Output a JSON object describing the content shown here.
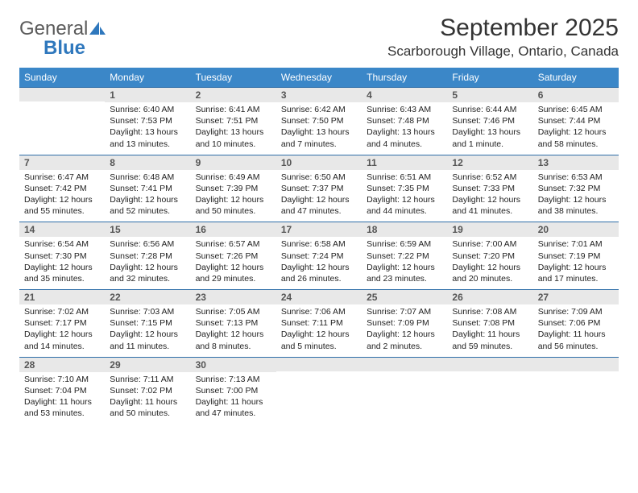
{
  "logo": {
    "general": "General",
    "blue": "Blue"
  },
  "title": "September 2025",
  "location": "Scarborough Village, Ontario, Canada",
  "dayHeaders": [
    "Sunday",
    "Monday",
    "Tuesday",
    "Wednesday",
    "Thursday",
    "Friday",
    "Saturday"
  ],
  "colors": {
    "header_bg": "#3b87c8",
    "header_text": "#ffffff",
    "daynum_bg": "#e8e8e8",
    "border": "#2f6ea8"
  },
  "weeks": [
    [
      {
        "n": "",
        "sr": "",
        "ss": "",
        "dl": ""
      },
      {
        "n": "1",
        "sr": "Sunrise: 6:40 AM",
        "ss": "Sunset: 7:53 PM",
        "dl": "Daylight: 13 hours and 13 minutes."
      },
      {
        "n": "2",
        "sr": "Sunrise: 6:41 AM",
        "ss": "Sunset: 7:51 PM",
        "dl": "Daylight: 13 hours and 10 minutes."
      },
      {
        "n": "3",
        "sr": "Sunrise: 6:42 AM",
        "ss": "Sunset: 7:50 PM",
        "dl": "Daylight: 13 hours and 7 minutes."
      },
      {
        "n": "4",
        "sr": "Sunrise: 6:43 AM",
        "ss": "Sunset: 7:48 PM",
        "dl": "Daylight: 13 hours and 4 minutes."
      },
      {
        "n": "5",
        "sr": "Sunrise: 6:44 AM",
        "ss": "Sunset: 7:46 PM",
        "dl": "Daylight: 13 hours and 1 minute."
      },
      {
        "n": "6",
        "sr": "Sunrise: 6:45 AM",
        "ss": "Sunset: 7:44 PM",
        "dl": "Daylight: 12 hours and 58 minutes."
      }
    ],
    [
      {
        "n": "7",
        "sr": "Sunrise: 6:47 AM",
        "ss": "Sunset: 7:42 PM",
        "dl": "Daylight: 12 hours and 55 minutes."
      },
      {
        "n": "8",
        "sr": "Sunrise: 6:48 AM",
        "ss": "Sunset: 7:41 PM",
        "dl": "Daylight: 12 hours and 52 minutes."
      },
      {
        "n": "9",
        "sr": "Sunrise: 6:49 AM",
        "ss": "Sunset: 7:39 PM",
        "dl": "Daylight: 12 hours and 50 minutes."
      },
      {
        "n": "10",
        "sr": "Sunrise: 6:50 AM",
        "ss": "Sunset: 7:37 PM",
        "dl": "Daylight: 12 hours and 47 minutes."
      },
      {
        "n": "11",
        "sr": "Sunrise: 6:51 AM",
        "ss": "Sunset: 7:35 PM",
        "dl": "Daylight: 12 hours and 44 minutes."
      },
      {
        "n": "12",
        "sr": "Sunrise: 6:52 AM",
        "ss": "Sunset: 7:33 PM",
        "dl": "Daylight: 12 hours and 41 minutes."
      },
      {
        "n": "13",
        "sr": "Sunrise: 6:53 AM",
        "ss": "Sunset: 7:32 PM",
        "dl": "Daylight: 12 hours and 38 minutes."
      }
    ],
    [
      {
        "n": "14",
        "sr": "Sunrise: 6:54 AM",
        "ss": "Sunset: 7:30 PM",
        "dl": "Daylight: 12 hours and 35 minutes."
      },
      {
        "n": "15",
        "sr": "Sunrise: 6:56 AM",
        "ss": "Sunset: 7:28 PM",
        "dl": "Daylight: 12 hours and 32 minutes."
      },
      {
        "n": "16",
        "sr": "Sunrise: 6:57 AM",
        "ss": "Sunset: 7:26 PM",
        "dl": "Daylight: 12 hours and 29 minutes."
      },
      {
        "n": "17",
        "sr": "Sunrise: 6:58 AM",
        "ss": "Sunset: 7:24 PM",
        "dl": "Daylight: 12 hours and 26 minutes."
      },
      {
        "n": "18",
        "sr": "Sunrise: 6:59 AM",
        "ss": "Sunset: 7:22 PM",
        "dl": "Daylight: 12 hours and 23 minutes."
      },
      {
        "n": "19",
        "sr": "Sunrise: 7:00 AM",
        "ss": "Sunset: 7:20 PM",
        "dl": "Daylight: 12 hours and 20 minutes."
      },
      {
        "n": "20",
        "sr": "Sunrise: 7:01 AM",
        "ss": "Sunset: 7:19 PM",
        "dl": "Daylight: 12 hours and 17 minutes."
      }
    ],
    [
      {
        "n": "21",
        "sr": "Sunrise: 7:02 AM",
        "ss": "Sunset: 7:17 PM",
        "dl": "Daylight: 12 hours and 14 minutes."
      },
      {
        "n": "22",
        "sr": "Sunrise: 7:03 AM",
        "ss": "Sunset: 7:15 PM",
        "dl": "Daylight: 12 hours and 11 minutes."
      },
      {
        "n": "23",
        "sr": "Sunrise: 7:05 AM",
        "ss": "Sunset: 7:13 PM",
        "dl": "Daylight: 12 hours and 8 minutes."
      },
      {
        "n": "24",
        "sr": "Sunrise: 7:06 AM",
        "ss": "Sunset: 7:11 PM",
        "dl": "Daylight: 12 hours and 5 minutes."
      },
      {
        "n": "25",
        "sr": "Sunrise: 7:07 AM",
        "ss": "Sunset: 7:09 PM",
        "dl": "Daylight: 12 hours and 2 minutes."
      },
      {
        "n": "26",
        "sr": "Sunrise: 7:08 AM",
        "ss": "Sunset: 7:08 PM",
        "dl": "Daylight: 11 hours and 59 minutes."
      },
      {
        "n": "27",
        "sr": "Sunrise: 7:09 AM",
        "ss": "Sunset: 7:06 PM",
        "dl": "Daylight: 11 hours and 56 minutes."
      }
    ],
    [
      {
        "n": "28",
        "sr": "Sunrise: 7:10 AM",
        "ss": "Sunset: 7:04 PM",
        "dl": "Daylight: 11 hours and 53 minutes."
      },
      {
        "n": "29",
        "sr": "Sunrise: 7:11 AM",
        "ss": "Sunset: 7:02 PM",
        "dl": "Daylight: 11 hours and 50 minutes."
      },
      {
        "n": "30",
        "sr": "Sunrise: 7:13 AM",
        "ss": "Sunset: 7:00 PM",
        "dl": "Daylight: 11 hours and 47 minutes."
      },
      {
        "n": "",
        "sr": "",
        "ss": "",
        "dl": ""
      },
      {
        "n": "",
        "sr": "",
        "ss": "",
        "dl": ""
      },
      {
        "n": "",
        "sr": "",
        "ss": "",
        "dl": ""
      },
      {
        "n": "",
        "sr": "",
        "ss": "",
        "dl": ""
      }
    ]
  ]
}
